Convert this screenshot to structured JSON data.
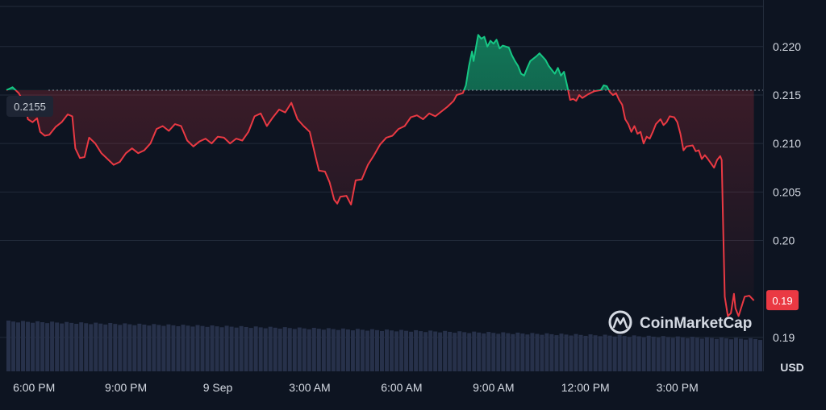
{
  "chart_data": {
    "type": "area",
    "currency_label": "USD",
    "reference_label": "0.2155",
    "reference_value": 0.2155,
    "last_price_label": "0.19",
    "watermark": "CoinMarketCap",
    "y_ticks": [
      {
        "value": 0.22,
        "label": "0.220"
      },
      {
        "value": 0.215,
        "label": "0.215"
      },
      {
        "value": 0.21,
        "label": "0.210"
      },
      {
        "value": 0.205,
        "label": "0.205"
      },
      {
        "value": 0.2,
        "label": "0.20"
      },
      {
        "value": 0.19,
        "label": "0.19"
      }
    ],
    "x_ticks": [
      {
        "value": 1.0,
        "label": "6:00 PM"
      },
      {
        "value": 4.0,
        "label": "9:00 PM"
      },
      {
        "value": 7.0,
        "label": "9 Sep"
      },
      {
        "value": 10.0,
        "label": "3:00 AM"
      },
      {
        "value": 13.0,
        "label": "6:00 AM"
      },
      {
        "value": 16.0,
        "label": "9:00 AM"
      },
      {
        "value": 19.0,
        "label": "12:00 PM"
      },
      {
        "value": 22.0,
        "label": "3:00 PM"
      }
    ],
    "xlim": [
      0.1,
      24.8
    ],
    "ylim": [
      0.1865,
      0.2248
    ],
    "colors": {
      "up": "#16c784",
      "down": "#ea3943",
      "volume": "#27314a"
    },
    "series": [
      {
        "values": [
          [
            0.1,
            0.2155
          ],
          [
            0.3,
            0.2158
          ],
          [
            0.5,
            0.2152
          ],
          [
            0.7,
            0.2141
          ],
          [
            0.8,
            0.2125
          ],
          [
            0.95,
            0.2122
          ],
          [
            1.1,
            0.2126
          ],
          [
            1.2,
            0.2112
          ],
          [
            1.35,
            0.2108
          ],
          [
            1.5,
            0.2109
          ],
          [
            1.7,
            0.2117
          ],
          [
            1.9,
            0.2122
          ],
          [
            2.1,
            0.213
          ],
          [
            2.25,
            0.2128
          ],
          [
            2.35,
            0.2095
          ],
          [
            2.5,
            0.2085
          ],
          [
            2.65,
            0.2086
          ],
          [
            2.8,
            0.2106
          ],
          [
            3.0,
            0.21
          ],
          [
            3.2,
            0.209
          ],
          [
            3.4,
            0.2084
          ],
          [
            3.6,
            0.2078
          ],
          [
            3.8,
            0.2081
          ],
          [
            4.0,
            0.209
          ],
          [
            4.2,
            0.2095
          ],
          [
            4.4,
            0.209
          ],
          [
            4.6,
            0.2093
          ],
          [
            4.8,
            0.21
          ],
          [
            5.0,
            0.2115
          ],
          [
            5.2,
            0.2118
          ],
          [
            5.4,
            0.2113
          ],
          [
            5.6,
            0.212
          ],
          [
            5.8,
            0.2118
          ],
          [
            6.0,
            0.2103
          ],
          [
            6.2,
            0.2097
          ],
          [
            6.4,
            0.2102
          ],
          [
            6.6,
            0.2105
          ],
          [
            6.8,
            0.21
          ],
          [
            7.0,
            0.2107
          ],
          [
            7.2,
            0.2106
          ],
          [
            7.4,
            0.21
          ],
          [
            7.6,
            0.2105
          ],
          [
            7.8,
            0.2103
          ],
          [
            8.0,
            0.2112
          ],
          [
            8.2,
            0.2128
          ],
          [
            8.4,
            0.2131
          ],
          [
            8.6,
            0.2118
          ],
          [
            8.8,
            0.2127
          ],
          [
            9.0,
            0.2135
          ],
          [
            9.2,
            0.2132
          ],
          [
            9.4,
            0.2142
          ],
          [
            9.6,
            0.2125
          ],
          [
            9.8,
            0.2118
          ],
          [
            10.0,
            0.2112
          ],
          [
            10.2,
            0.2085
          ],
          [
            10.3,
            0.2072
          ],
          [
            10.5,
            0.2071
          ],
          [
            10.65,
            0.206
          ],
          [
            10.8,
            0.2042
          ],
          [
            10.9,
            0.2038
          ],
          [
            11.0,
            0.2045
          ],
          [
            11.2,
            0.2046
          ],
          [
            11.35,
            0.2037
          ],
          [
            11.5,
            0.2062
          ],
          [
            11.7,
            0.2063
          ],
          [
            11.9,
            0.2078
          ],
          [
            12.1,
            0.2088
          ],
          [
            12.3,
            0.2099
          ],
          [
            12.5,
            0.2106
          ],
          [
            12.7,
            0.2108
          ],
          [
            12.9,
            0.2115
          ],
          [
            13.1,
            0.2118
          ],
          [
            13.3,
            0.2127
          ],
          [
            13.5,
            0.2129
          ],
          [
            13.7,
            0.2125
          ],
          [
            13.9,
            0.2131
          ],
          [
            14.1,
            0.2128
          ],
          [
            14.3,
            0.2133
          ],
          [
            14.5,
            0.2138
          ],
          [
            14.7,
            0.2144
          ],
          [
            14.8,
            0.215
          ],
          [
            15.0,
            0.2152
          ],
          [
            15.1,
            0.216
          ],
          [
            15.2,
            0.218
          ],
          [
            15.3,
            0.2195
          ],
          [
            15.35,
            0.2185
          ],
          [
            15.5,
            0.2212
          ],
          [
            15.6,
            0.2208
          ],
          [
            15.7,
            0.221
          ],
          [
            15.8,
            0.22
          ],
          [
            15.9,
            0.2206
          ],
          [
            16.0,
            0.2203
          ],
          [
            16.1,
            0.2207
          ],
          [
            16.2,
            0.2198
          ],
          [
            16.3,
            0.2201
          ],
          [
            16.5,
            0.2199
          ],
          [
            16.6,
            0.2191
          ],
          [
            16.7,
            0.2185
          ],
          [
            16.8,
            0.218
          ],
          [
            16.9,
            0.2172
          ],
          [
            17.0,
            0.217
          ],
          [
            17.1,
            0.2178
          ],
          [
            17.2,
            0.2185
          ],
          [
            17.4,
            0.219
          ],
          [
            17.5,
            0.2193
          ],
          [
            17.7,
            0.2186
          ],
          [
            17.8,
            0.218
          ],
          [
            17.9,
            0.2176
          ],
          [
            18.0,
            0.2172
          ],
          [
            18.1,
            0.2178
          ],
          [
            18.2,
            0.217
          ],
          [
            18.3,
            0.2174
          ],
          [
            18.4,
            0.216
          ],
          [
            18.5,
            0.2145
          ],
          [
            18.6,
            0.2146
          ],
          [
            18.7,
            0.2144
          ],
          [
            18.8,
            0.215
          ],
          [
            18.9,
            0.2147
          ],
          [
            19.1,
            0.2151
          ],
          [
            19.3,
            0.2154
          ],
          [
            19.5,
            0.2155
          ],
          [
            19.6,
            0.216
          ],
          [
            19.7,
            0.2159
          ],
          [
            19.8,
            0.2153
          ],
          [
            19.9,
            0.215
          ],
          [
            20.0,
            0.2152
          ],
          [
            20.1,
            0.2145
          ],
          [
            20.2,
            0.214
          ],
          [
            20.3,
            0.2125
          ],
          [
            20.4,
            0.212
          ],
          [
            20.5,
            0.2112
          ],
          [
            20.6,
            0.2118
          ],
          [
            20.7,
            0.211
          ],
          [
            20.8,
            0.2112
          ],
          [
            20.9,
            0.21
          ],
          [
            21.0,
            0.2107
          ],
          [
            21.1,
            0.2105
          ],
          [
            21.2,
            0.2112
          ],
          [
            21.3,
            0.212
          ],
          [
            21.45,
            0.2125
          ],
          [
            21.55,
            0.2119
          ],
          [
            21.65,
            0.2122
          ],
          [
            21.75,
            0.2128
          ],
          [
            21.9,
            0.2127
          ],
          [
            22.0,
            0.2122
          ],
          [
            22.1,
            0.211
          ],
          [
            22.2,
            0.2093
          ],
          [
            22.3,
            0.2097
          ],
          [
            22.5,
            0.2098
          ],
          [
            22.6,
            0.2092
          ],
          [
            22.7,
            0.2093
          ],
          [
            22.8,
            0.2084
          ],
          [
            22.9,
            0.2088
          ],
          [
            23.0,
            0.2084
          ],
          [
            23.2,
            0.2075
          ],
          [
            23.3,
            0.2083
          ],
          [
            23.4,
            0.2087
          ],
          [
            23.45,
            0.2083
          ],
          [
            23.5,
            0.201
          ],
          [
            23.55,
            0.1942
          ],
          [
            23.65,
            0.1922
          ],
          [
            23.75,
            0.1925
          ],
          [
            23.85,
            0.1945
          ],
          [
            23.9,
            0.193
          ],
          [
            24.0,
            0.1922
          ],
          [
            24.1,
            0.1932
          ],
          [
            24.2,
            0.1942
          ],
          [
            24.35,
            0.1943
          ],
          [
            24.5,
            0.1938
          ]
        ]
      }
    ]
  }
}
